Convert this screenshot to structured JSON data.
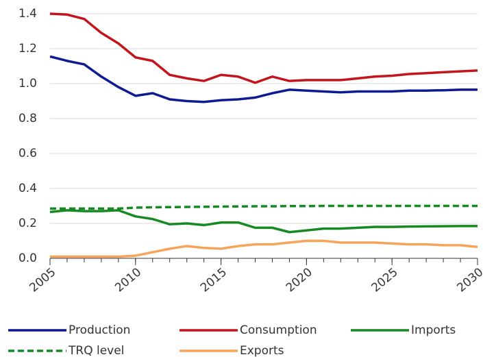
{
  "chart_data": {
    "type": "line",
    "x": [
      2005,
      2006,
      2007,
      2008,
      2009,
      2010,
      2011,
      2012,
      2013,
      2014,
      2015,
      2016,
      2017,
      2018,
      2019,
      2020,
      2021,
      2022,
      2023,
      2024,
      2025,
      2026,
      2027,
      2028,
      2029,
      2030
    ],
    "xlim": [
      2005,
      2030
    ],
    "xticks": [
      2005,
      2010,
      2015,
      2020,
      2025,
      2030
    ],
    "ylim": [
      0,
      1.4
    ],
    "yticks": [
      {
        "value": 0,
        "label": "0.0"
      },
      0.2,
      0.4,
      0.6,
      0.8,
      {
        "value": 1,
        "label": "1.0"
      },
      1.2,
      1.4
    ],
    "grid": true,
    "series": [
      {
        "name": "Production",
        "color": "#0d1a91",
        "style": "solid",
        "values": [
          1.155,
          1.13,
          1.11,
          1.04,
          0.98,
          0.93,
          0.945,
          0.91,
          0.9,
          0.895,
          0.905,
          0.91,
          0.92,
          0.945,
          0.965,
          0.96,
          0.955,
          0.95,
          0.955,
          0.955,
          0.955,
          0.96,
          0.96,
          0.962,
          0.965,
          0.965
        ]
      },
      {
        "name": "Consumption",
        "color": "#c4141c",
        "style": "solid",
        "values": [
          1.4,
          1.395,
          1.37,
          1.29,
          1.23,
          1.15,
          1.13,
          1.05,
          1.03,
          1.015,
          1.05,
          1.04,
          1.005,
          1.04,
          1.015,
          1.02,
          1.02,
          1.02,
          1.03,
          1.04,
          1.045,
          1.055,
          1.06,
          1.065,
          1.07,
          1.075
        ]
      },
      {
        "name": "Imports",
        "color": "#168a22",
        "style": "solid",
        "values": [
          0.265,
          0.275,
          0.27,
          0.27,
          0.275,
          0.24,
          0.225,
          0.195,
          0.2,
          0.19,
          0.205,
          0.205,
          0.175,
          0.175,
          0.15,
          0.16,
          0.17,
          0.17,
          0.175,
          0.18,
          0.18,
          0.182,
          0.183,
          0.184,
          0.185,
          0.185
        ]
      },
      {
        "name": "TRQ level",
        "color": "#168a22",
        "style": "dashed",
        "values": [
          0.285,
          0.285,
          0.285,
          0.285,
          0.285,
          0.29,
          0.292,
          0.293,
          0.294,
          0.295,
          0.296,
          0.297,
          0.298,
          0.298,
          0.299,
          0.299,
          0.3,
          0.3,
          0.3,
          0.3,
          0.3,
          0.3,
          0.3,
          0.3,
          0.3,
          0.3
        ]
      },
      {
        "name": "Exports",
        "color": "#f5a45a",
        "style": "solid",
        "values": [
          0.01,
          0.01,
          0.01,
          0.01,
          0.01,
          0.015,
          0.035,
          0.055,
          0.07,
          0.06,
          0.055,
          0.07,
          0.08,
          0.08,
          0.09,
          0.1,
          0.1,
          0.09,
          0.09,
          0.09,
          0.085,
          0.08,
          0.08,
          0.075,
          0.075,
          0.065
        ]
      }
    ]
  }
}
